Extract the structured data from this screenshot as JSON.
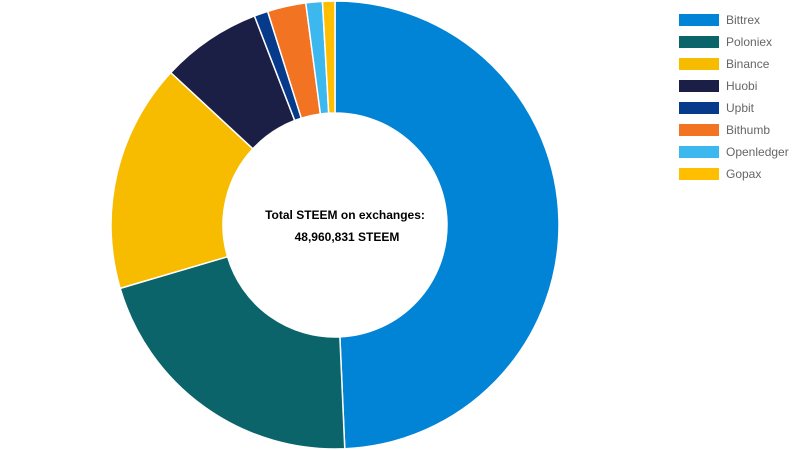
{
  "chart_data": {
    "type": "pie",
    "variant": "doughnut",
    "center_text": {
      "title": "Total STEEM on exchanges:",
      "value": "48,960,831 STEEM"
    },
    "legend_position": "right",
    "series": [
      {
        "name": "Bittrex",
        "value": 49.7,
        "color": "#0183D6"
      },
      {
        "name": "Poloniex",
        "value": 21.3,
        "color": "#0A6469"
      },
      {
        "name": "Binance",
        "value": 16.6,
        "color": "#F7BB00"
      },
      {
        "name": "Huobi",
        "value": 7.3,
        "color": "#1B1F45"
      },
      {
        "name": "Upbit",
        "value": 1.0,
        "color": "#083A8C"
      },
      {
        "name": "Bithumb",
        "value": 2.8,
        "color": "#F27322"
      },
      {
        "name": "Openledger",
        "value": 1.2,
        "color": "#3DB8EE"
      },
      {
        "name": "Gopax",
        "value": 0.9,
        "color": "#FFBF00"
      }
    ]
  }
}
